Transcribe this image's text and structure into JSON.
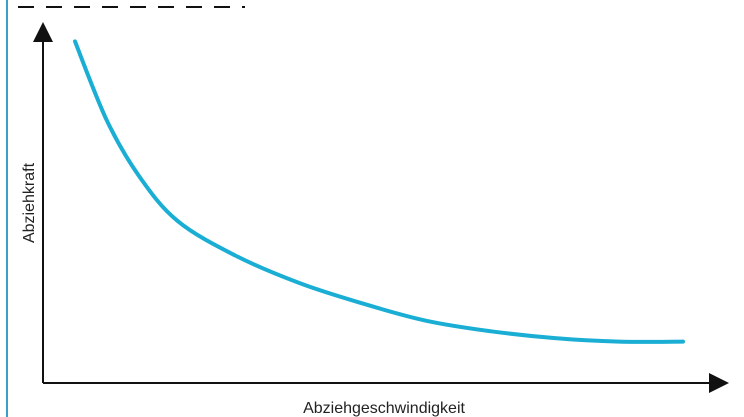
{
  "chart_data": {
    "type": "line",
    "title": "",
    "xlabel": "Abziehgeschwindigkeit",
    "ylabel": "Abziehkraft",
    "show_tick_labels": false,
    "grid": false,
    "xlim": [
      0,
      10
    ],
    "ylim": [
      0,
      10
    ],
    "series": [
      {
        "values": [
          {
            "x": 0.5,
            "y": 9.9
          },
          {
            "x": 1.0,
            "y": 7.6
          },
          {
            "x": 1.5,
            "y": 6.0
          },
          {
            "x": 2.1,
            "y": 4.7
          },
          {
            "x": 3.0,
            "y": 3.7
          },
          {
            "x": 4.0,
            "y": 2.9
          },
          {
            "x": 5.0,
            "y": 2.3
          },
          {
            "x": 6.0,
            "y": 1.8
          },
          {
            "x": 7.0,
            "y": 1.5
          },
          {
            "x": 8.0,
            "y": 1.3
          },
          {
            "x": 9.0,
            "y": 1.2
          },
          {
            "x": 10.0,
            "y": 1.2
          }
        ],
        "color": "#1aaed4"
      }
    ],
    "reference_line": {
      "style": "dashed",
      "position": "top-left"
    }
  }
}
